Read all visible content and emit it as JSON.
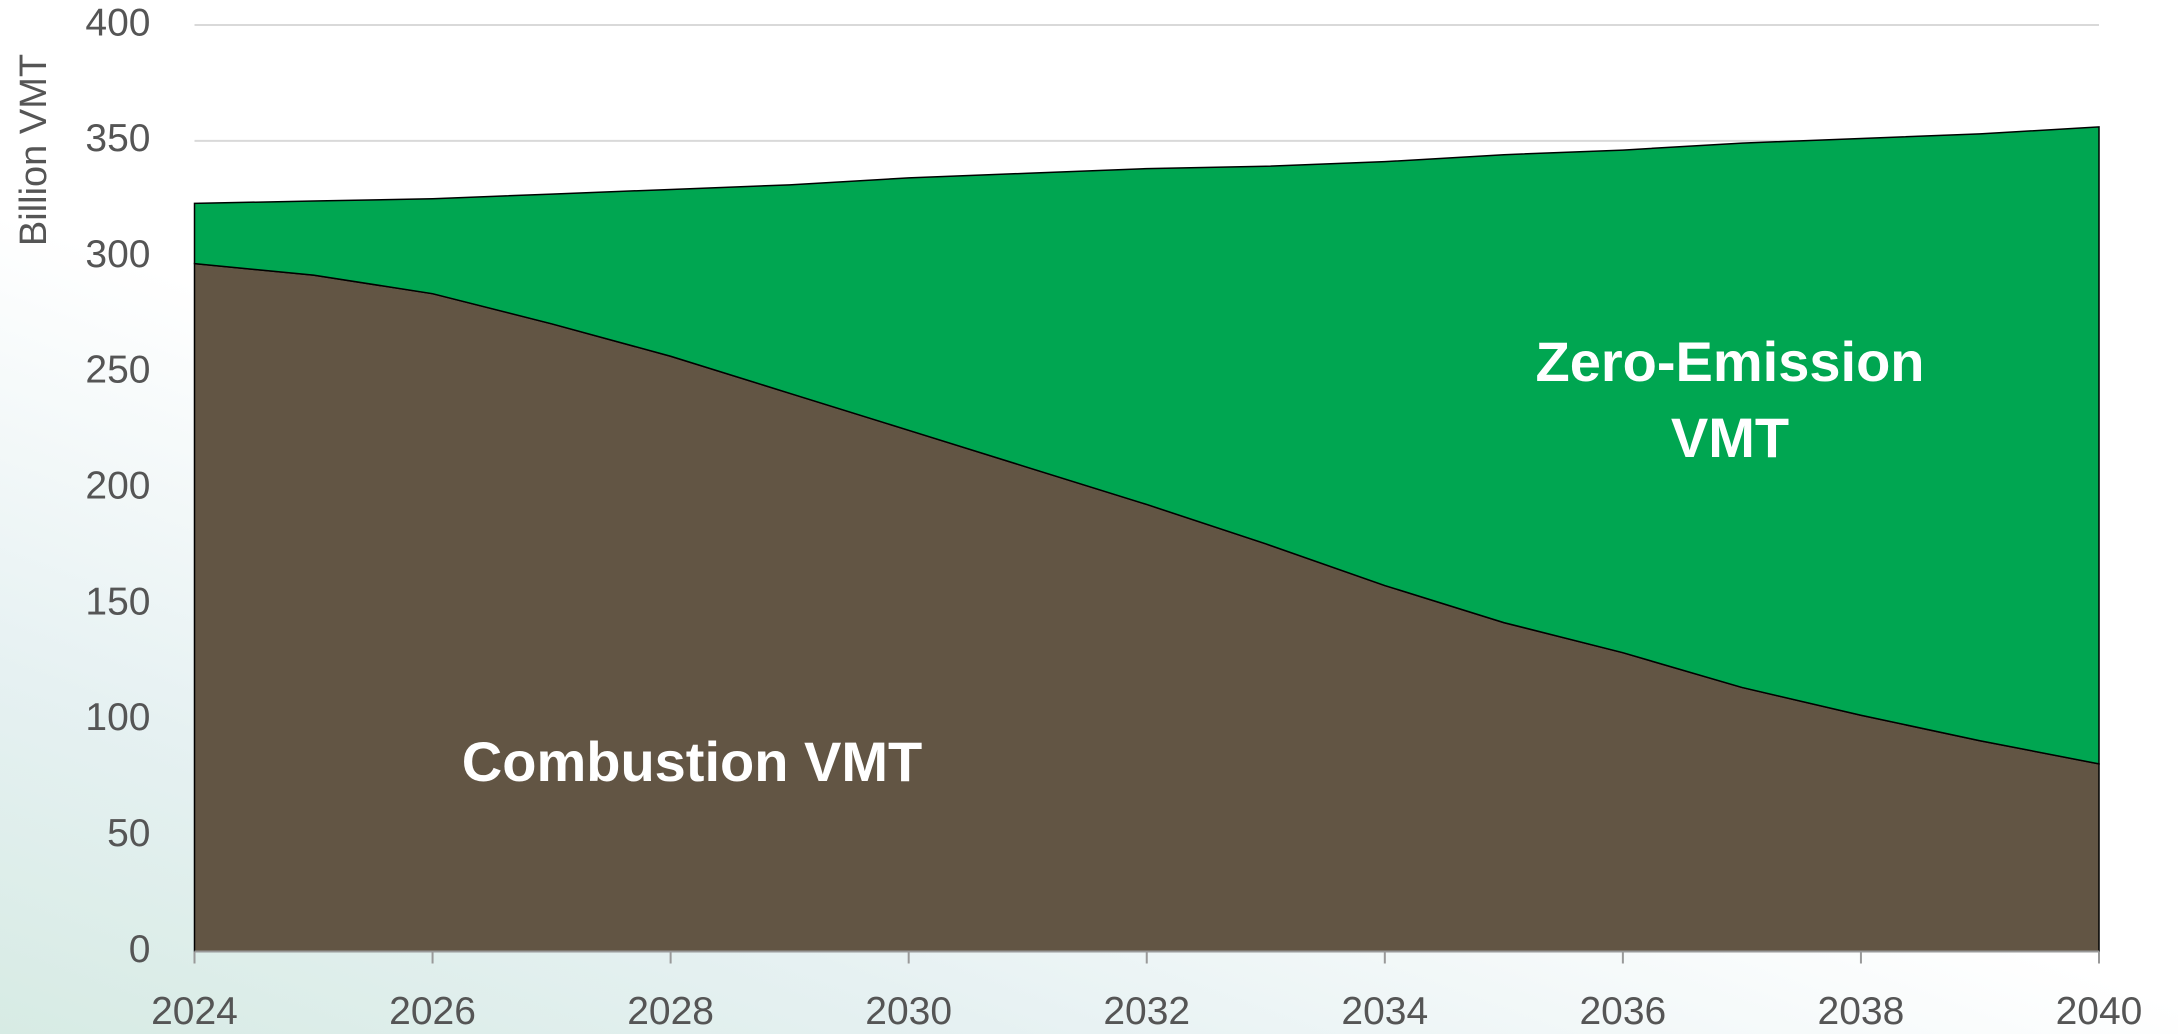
{
  "chart_data": {
    "type": "stacked-area",
    "y_label": "Billion VMT",
    "x": [
      2024,
      2025,
      2026,
      2027,
      2028,
      2029,
      2030,
      2031,
      2032,
      2033,
      2034,
      2035,
      2036,
      2037,
      2038,
      2039,
      2040
    ],
    "series": [
      {
        "name": "Combustion VMT",
        "color": "#625544",
        "values": [
          297,
          292,
          284,
          271,
          257,
          241,
          225,
          209,
          193,
          176,
          158,
          142,
          129,
          114,
          102,
          91,
          81
        ]
      },
      {
        "name": "Zero-Emission VMT",
        "color": "#00a651",
        "values": [
          26,
          32,
          41,
          56,
          72,
          90,
          109,
          127,
          145,
          163,
          183,
          202,
          217,
          235,
          249,
          262,
          275
        ]
      }
    ],
    "xlim": [
      2024,
      2040
    ],
    "xticks": [
      2024,
      2026,
      2028,
      2030,
      2032,
      2034,
      2036,
      2038,
      2040
    ],
    "ylim": [
      0,
      400
    ],
    "yticks": [
      0,
      50,
      100,
      150,
      200,
      250,
      300,
      350,
      400
    ],
    "grid": true
  }
}
